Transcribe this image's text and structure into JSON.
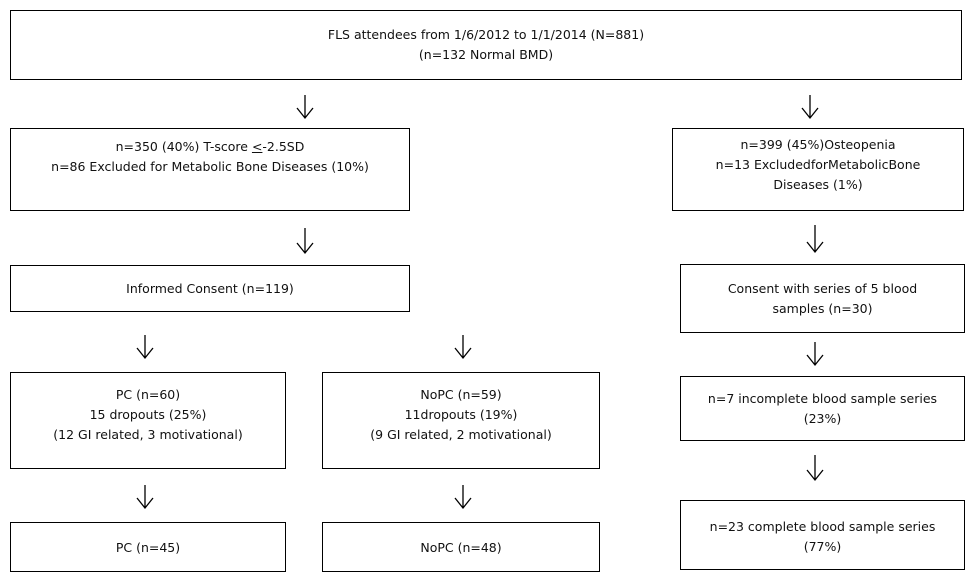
{
  "nodes": [
    {
      "lines": [
        "FLS attendees from 1/6/2012 to 1/1/2014 (N=881)",
        "(n=132 Normal BMD)"
      ]
    },
    {
      "lines": [
        [
          "n=350 (40%) T-score ",
          "<",
          "-2.5SD"
        ],
        "n=86 Excluded for Metabolic Bone Diseases (10%)"
      ]
    },
    {
      "lines": [
        "n=399 (45%)Osteopenia",
        "n=13 ExcludedforMetabolicBone",
        "Diseases (1%)"
      ]
    },
    {
      "lines": [
        "Informed Consent (n=119)"
      ]
    },
    {
      "lines": [
        "Consent with series of 5 blood",
        "samples (n=30)"
      ]
    },
    {
      "lines": [
        "PC (n=60)",
        "15 dropouts (25%)",
        "(12 GI related, 3 motivational)"
      ]
    },
    {
      "lines": [
        "NoPC (n=59)",
        "11dropouts (19%)",
        "(9 GI related, 2 motivational)"
      ]
    },
    {
      "lines": [
        "n=7 incomplete blood sample series",
        "(23%)"
      ]
    },
    {
      "lines": [
        "PC (n=45)"
      ]
    },
    {
      "lines": [
        "NoPC (n=48)"
      ]
    },
    {
      "lines": [
        "n=23 complete blood sample series",
        "(77%)"
      ]
    }
  ]
}
